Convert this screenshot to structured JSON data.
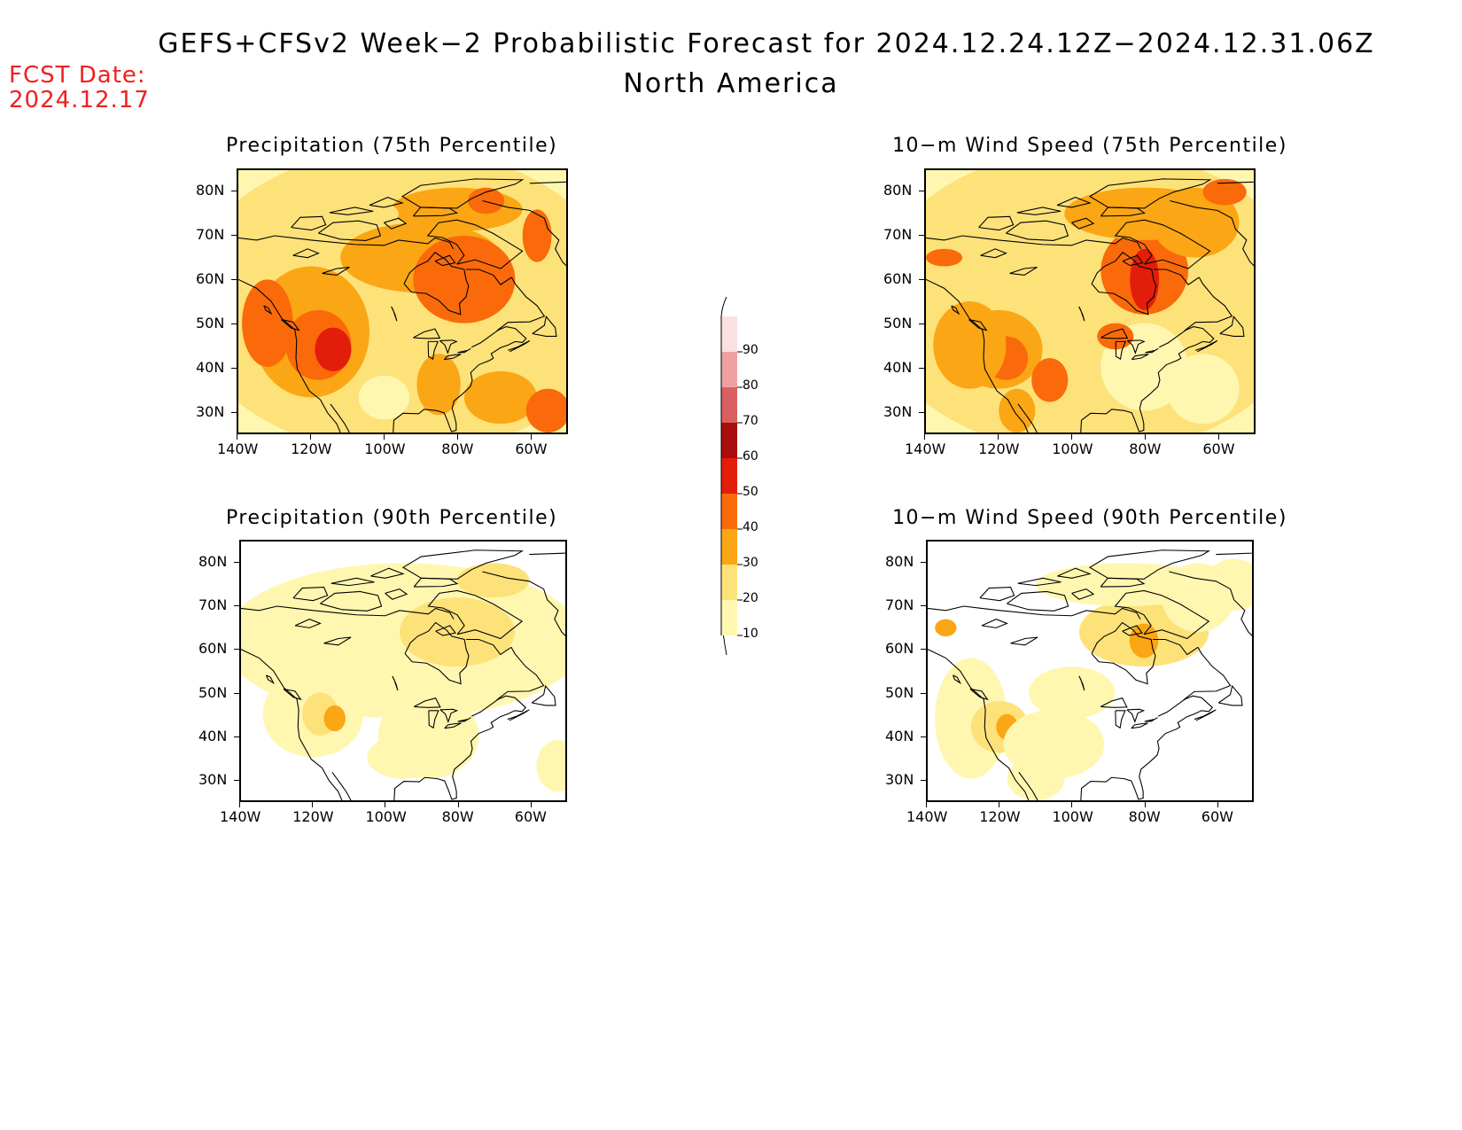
{
  "header": {
    "title": "GEFS+CFSv2 Week−2 Probabilistic Forecast for 2024.12.24.12Z−2024.12.31.06Z",
    "region": "North America",
    "fcst_label": "FCST Date:",
    "fcst_date": "2024.12.17"
  },
  "panels": [
    {
      "title": "Precipitation (75th Percentile)"
    },
    {
      "title": "10−m Wind Speed (75th Percentile)"
    },
    {
      "title": "Precipitation (90th Percentile)"
    },
    {
      "title": "10−m Wind Speed (90th Percentile)"
    }
  ],
  "axes": {
    "lon_labels": [
      "140W",
      "120W",
      "100W",
      "80W",
      "60W"
    ],
    "lat_labels": [
      "80N",
      "70N",
      "60N",
      "50N",
      "40N",
      "30N"
    ],
    "lon_range_deg": [
      -140,
      -50
    ],
    "lat_range_deg": [
      25,
      85
    ]
  },
  "colorbar": {
    "levels": [
      "10",
      "20",
      "30",
      "40",
      "50",
      "60",
      "70",
      "80",
      "90"
    ],
    "colors": [
      "#fff7b0",
      "#fde27a",
      "#fba614",
      "#fa6a0a",
      "#e21e0a",
      "#a80c0c",
      "#d86060",
      "#f0a0a0",
      "#fce0e0"
    ]
  }
}
